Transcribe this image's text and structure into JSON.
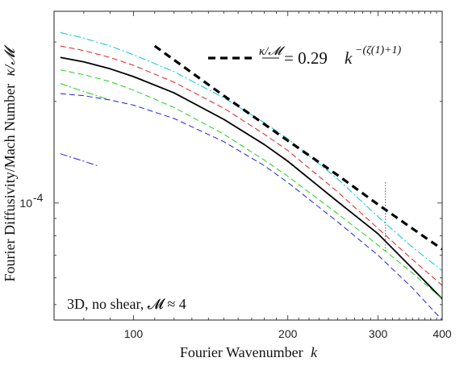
{
  "chart_data": {
    "type": "line",
    "xscale": "log",
    "yscale": "log",
    "xlim": [
      70,
      400
    ],
    "ylim": [
      4.5e-05,
      0.00037
    ],
    "xlabel": "Fourier Wavenumber",
    "xlabel_symbol": "k",
    "ylabel": "Fourier Diffusivity/Mach Number",
    "ylabel_symbol": "κ/𝓜",
    "x_ticks": [
      100,
      200,
      300,
      400
    ],
    "x_tick_labels": [
      "100",
      "200",
      "300",
      "400"
    ],
    "y_ticks": [
      0.0001
    ],
    "y_tick_labels_base": "10",
    "y_tick_labels_exp": "-4",
    "grid": false,
    "legend_position": "top-right",
    "legend_label": "= 0.29",
    "legend_label_lhs": "κ/𝓜",
    "legend_label_exp": "−(ζ(1)+1)",
    "annotation": "3D, no shear, 𝓜 ≈ 4",
    "annotation_position": "bottom-left",
    "vertical_marker_x": 310,
    "series": [
      {
        "color": "#00c8d8",
        "dash": "dashdot",
        "points": [
          [
            72,
            0.00032
          ],
          [
            80,
            0.000308
          ],
          [
            90,
            0.000292
          ],
          [
            100,
            0.000275
          ],
          [
            120,
            0.000245
          ],
          [
            150,
            0.000205
          ],
          [
            180,
            0.000173
          ],
          [
            200,
            0.000155
          ],
          [
            250,
            0.000118
          ],
          [
            300,
            9.1e-05
          ],
          [
            350,
            7.4e-05
          ],
          [
            400,
            6.3e-05
          ]
        ]
      },
      {
        "color": "#e02020",
        "dash": "dashed",
        "points": [
          [
            72,
            0.000292
          ],
          [
            80,
            0.000283
          ],
          [
            90,
            0.00027
          ],
          [
            100,
            0.000256
          ],
          [
            120,
            0.000228
          ],
          [
            150,
            0.000191
          ],
          [
            180,
            0.00016
          ],
          [
            200,
            0.000143
          ],
          [
            250,
            0.000108
          ],
          [
            300,
            8.4e-05
          ],
          [
            350,
            6.8e-05
          ],
          [
            400,
            5.7e-05
          ]
        ]
      },
      {
        "color": "#000000",
        "dash": "solid",
        "points": [
          [
            72,
            0.00027
          ],
          [
            80,
            0.000262
          ],
          [
            90,
            0.00025
          ],
          [
            100,
            0.000237
          ],
          [
            120,
            0.000212
          ],
          [
            150,
            0.000177
          ],
          [
            180,
            0.000149
          ],
          [
            200,
            0.000133
          ],
          [
            250,
            0.000101
          ],
          [
            300,
            8.1e-05
          ],
          [
            350,
            6.4e-05
          ],
          [
            400,
            5.2e-05
          ]
        ]
      },
      {
        "color": "#20d020",
        "dash": "dashed",
        "points": [
          [
            72,
            0.000248
          ],
          [
            80,
            0.00024
          ],
          [
            90,
            0.000229
          ],
          [
            100,
            0.000216
          ],
          [
            120,
            0.000192
          ],
          [
            150,
            0.00016
          ],
          [
            180,
            0.000134
          ],
          [
            200,
            0.00012
          ],
          [
            250,
            9.3e-05
          ],
          [
            300,
            7.5e-05
          ],
          [
            350,
            6.2e-05
          ],
          [
            400,
            5.2e-05
          ]
        ]
      },
      {
        "color": "#20d020",
        "dash": "dashdot",
        "points": [
          [
            72,
            0.000226
          ],
          [
            80,
            0.000214
          ],
          [
            90,
            0.000202
          ]
        ]
      },
      {
        "color": "#2020e0",
        "dash": "dashed",
        "points": [
          [
            72,
            0.000211
          ],
          [
            80,
            0.000208
          ],
          [
            90,
            0.000202
          ],
          [
            100,
            0.000195
          ],
          [
            120,
            0.000178
          ],
          [
            150,
            0.000152
          ],
          [
            180,
            0.000129
          ],
          [
            200,
            0.000115
          ],
          [
            250,
            8.8e-05
          ],
          [
            300,
            7e-05
          ],
          [
            350,
            5.6e-05
          ],
          [
            400,
            4.5e-05
          ]
        ]
      },
      {
        "color": "#2020e0",
        "dash": "dashdot",
        "points": [
          [
            72,
            0.00014
          ],
          [
            80,
            0.000133
          ],
          [
            85,
            0.000129
          ]
        ]
      },
      {
        "name": "fit",
        "color": "#000000",
        "dash": "bold-dashed",
        "points": [
          [
            110,
            0.000292
          ],
          [
            150,
            0.000208
          ],
          [
            200,
            0.000153
          ],
          [
            250,
            0.000121
          ],
          [
            300,
            9.9e-05
          ],
          [
            350,
            8.4e-05
          ],
          [
            400,
            7.3e-05
          ]
        ]
      }
    ]
  }
}
